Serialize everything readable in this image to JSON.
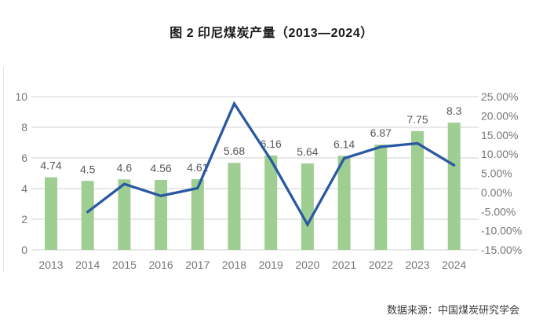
{
  "title": "图 2 印尼煤炭产量（2013—2024）",
  "source": "数据来源：中国煤炭研究学会",
  "chart_data": {
    "type": "combo",
    "title": "图 2 印尼煤炭产量（2013—2024）",
    "categories": [
      "2013",
      "2014",
      "2015",
      "2016",
      "2017",
      "2018",
      "2019",
      "2020",
      "2021",
      "2022",
      "2023",
      "2024"
    ],
    "series": [
      {
        "type": "bar",
        "axis": "left",
        "values": [
          4.74,
          4.5,
          4.6,
          4.56,
          4.61,
          5.68,
          6.16,
          5.64,
          6.14,
          6.87,
          7.75,
          8.3
        ],
        "data_labels": [
          "4.74",
          "4.5",
          "4.6",
          "4.56",
          "4.61",
          "5.68",
          "6.16",
          "5.64",
          "6.14",
          "6.87",
          "7.75",
          "8.3"
        ],
        "color": "#9ECE91"
      },
      {
        "type": "line",
        "axis": "right",
        "values": [
          null,
          -5.1,
          2.2,
          -0.9,
          1.1,
          23.2,
          8.5,
          -8.4,
          8.9,
          11.9,
          12.8,
          7.1
        ],
        "color": "#2A58A2"
      }
    ],
    "left_axis": {
      "min": 0,
      "max": 10,
      "tick_labels": [
        "10",
        "8",
        "6",
        "4",
        "2",
        "0"
      ]
    },
    "right_axis": {
      "min": -15,
      "max": 25,
      "tick_labels": [
        "25.00%",
        "20.00%",
        "15.00%",
        "10.00%",
        "5.00%",
        "0.00%",
        "-5.00%",
        "-10.00%",
        "-15.00%"
      ]
    },
    "grid": true,
    "legend": "none",
    "colors": {
      "gridline": "#D9D9D9",
      "axis_text": "#767676",
      "data_label_text": "#595959",
      "bar": "#9ECE91",
      "line": "#2A58A2"
    }
  }
}
